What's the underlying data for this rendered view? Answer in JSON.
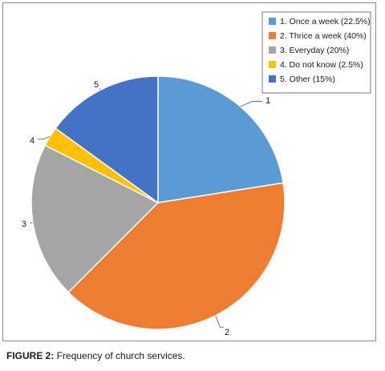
{
  "chart_data": {
    "type": "pie",
    "categories": [
      "1",
      "2",
      "3",
      "4",
      "5"
    ],
    "values": [
      22.5,
      40,
      20,
      2.5,
      15
    ],
    "legend": [
      "1. Once a week (22.5%)",
      "2. Thrice a week (40%)",
      "3. Everyday (20%)",
      "4. Do not know (2.5%)",
      "5. Other (15%)"
    ],
    "colors": [
      "#5b9bd5",
      "#ed7d31",
      "#a5a5a5",
      "#ffc000",
      "#4472c4"
    ],
    "legend_position": "top-right"
  },
  "caption": {
    "label": "FIGURE 2:",
    "text": "Frequency of church services."
  }
}
